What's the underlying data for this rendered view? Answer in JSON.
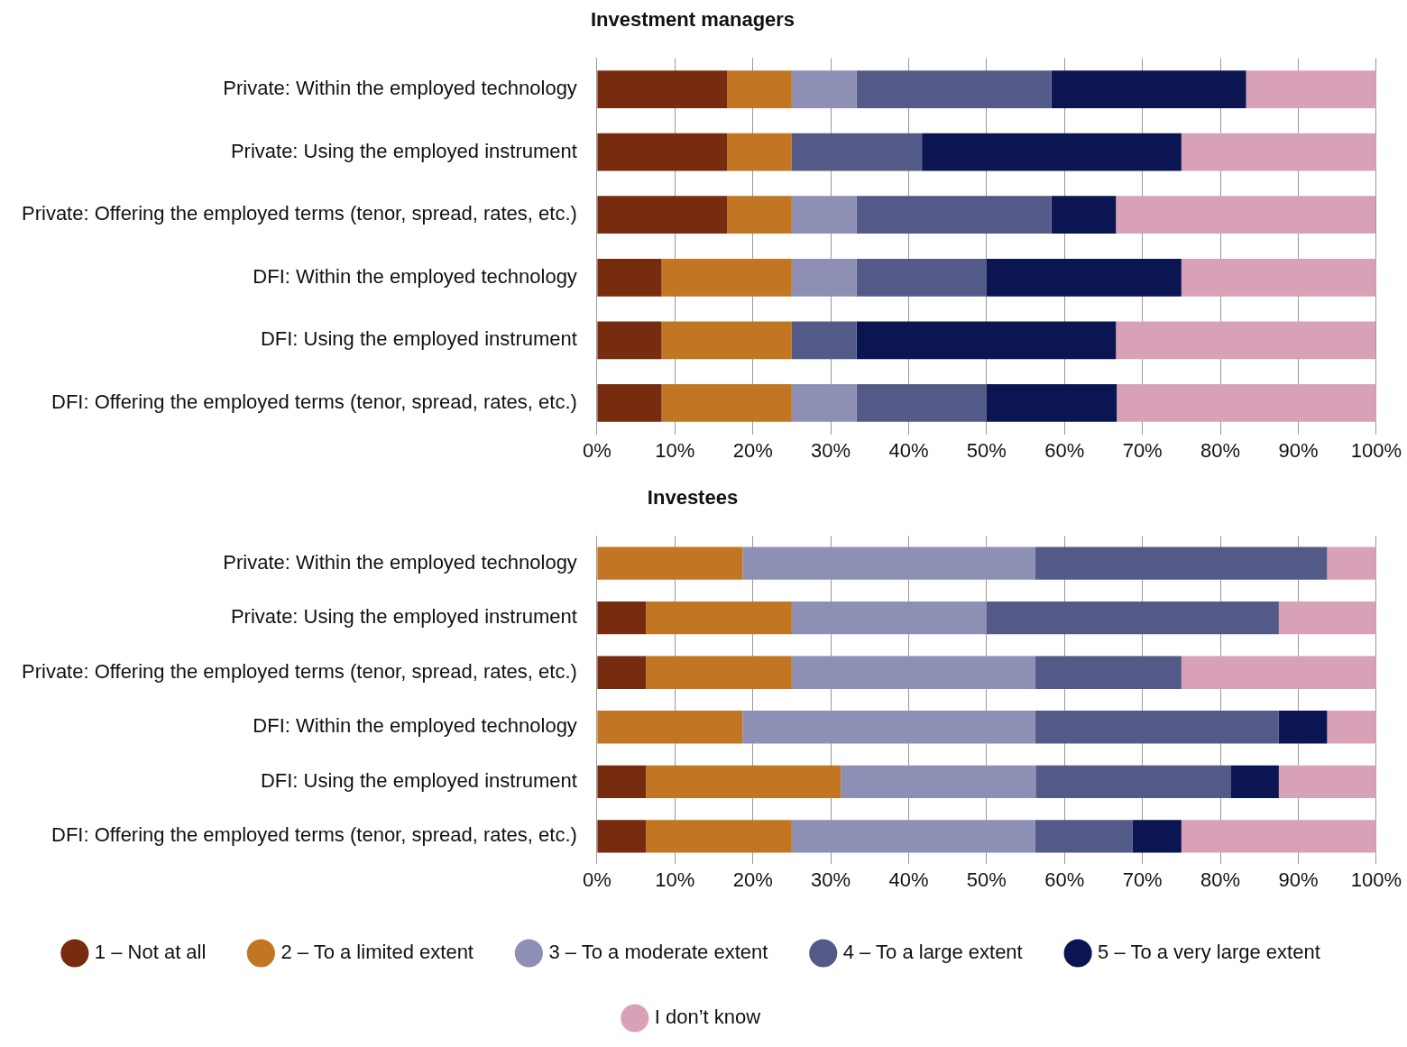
{
  "chart_data": [
    {
      "type": "bar",
      "title": "Investment managers",
      "orientation": "horizontal",
      "stacked": true,
      "grid": "x",
      "legend": false,
      "categories": [
        "Private: Within the employed technology",
        "Private: Using the employed instrument",
        "Private: Offering the employed terms (tenor, spread, rates, etc.)",
        "DFI: Within the employed technology",
        "DFI: Using the employed instrument",
        "DFI: Offering the employed terms (tenor, spread, rates, etc.)"
      ],
      "xlim": [
        0,
        100
      ],
      "xticks": [
        {
          "value": 0,
          "label": "0%"
        },
        {
          "value": 10,
          "label": "10%"
        },
        {
          "value": 20,
          "label": "20%"
        },
        {
          "value": 30,
          "label": "30%"
        },
        {
          "value": 40,
          "label": "40%"
        },
        {
          "value": 50,
          "label": "50%"
        },
        {
          "value": 60,
          "label": "60%"
        },
        {
          "value": 70,
          "label": "70%"
        },
        {
          "value": 80,
          "label": "80%"
        },
        {
          "value": 90,
          "label": "90%"
        },
        {
          "value": 100,
          "label": "100%"
        }
      ],
      "series": [
        {
          "color": "#772b0f",
          "values": [
            16.7,
            16.7,
            16.7,
            8.3,
            8.3,
            8.3
          ]
        },
        {
          "color": "#c27522",
          "values": [
            8.3,
            8.3,
            8.3,
            16.7,
            16.7,
            16.7
          ]
        },
        {
          "color": "#8e8fb5",
          "values": [
            8.3,
            0,
            8.3,
            8.3,
            0,
            8.3
          ]
        },
        {
          "color": "#535a87",
          "values": [
            25,
            16.7,
            25,
            16.7,
            8.3,
            16.7
          ]
        },
        {
          "color": "#0b1551",
          "values": [
            25,
            33.3,
            8.3,
            25,
            33.3,
            16.7
          ]
        },
        {
          "color": "#d9a1b8",
          "values": [
            16.7,
            25,
            33.3,
            25,
            33.3,
            33.3
          ]
        }
      ]
    },
    {
      "type": "bar",
      "title": "Investees",
      "orientation": "horizontal",
      "stacked": true,
      "grid": "x",
      "legend": "bottom",
      "categories": [
        "Private: Within the employed technology",
        "Private: Using the employed instrument",
        "Private: Offering the employed terms (tenor, spread, rates, etc.)",
        "DFI: Within the employed technology",
        "DFI: Using the employed instrument",
        "DFI: Offering the employed terms (tenor, spread, rates, etc.)"
      ],
      "xlim": [
        0,
        100
      ],
      "xticks": [
        {
          "value": 0,
          "label": "0%"
        },
        {
          "value": 10,
          "label": "10%"
        },
        {
          "value": 20,
          "label": "20%"
        },
        {
          "value": 30,
          "label": "30%"
        },
        {
          "value": 40,
          "label": "40%"
        },
        {
          "value": 50,
          "label": "50%"
        },
        {
          "value": 60,
          "label": "60%"
        },
        {
          "value": 70,
          "label": "70%"
        },
        {
          "value": 80,
          "label": "80%"
        },
        {
          "value": 90,
          "label": "90%"
        },
        {
          "value": 100,
          "label": "100%"
        }
      ],
      "series": [
        {
          "name": "1 – Not at all",
          "color": "#772b0f",
          "values": [
            0,
            6.3,
            6.3,
            0,
            6.3,
            6.3
          ]
        },
        {
          "name": "2 – To a limited extent",
          "color": "#c27522",
          "values": [
            18.7,
            18.7,
            18.7,
            18.7,
            25,
            18.7
          ]
        },
        {
          "name": "3 – To a moderate extent",
          "color": "#8e8fb5",
          "values": [
            37.5,
            25,
            31.2,
            37.5,
            25,
            31.2
          ]
        },
        {
          "name": "4 – To a large extent",
          "color": "#535a87",
          "values": [
            37.5,
            37.5,
            18.8,
            31.3,
            25,
            12.5
          ]
        },
        {
          "name": "5 – To a very large extent",
          "color": "#0b1551",
          "values": [
            0,
            0,
            0,
            6.2,
            6.2,
            6.3
          ]
        },
        {
          "name": "I don’t know",
          "color": "#d9a1b8",
          "values": [
            6.3,
            12.5,
            25,
            6.3,
            12.5,
            25
          ]
        }
      ]
    }
  ]
}
